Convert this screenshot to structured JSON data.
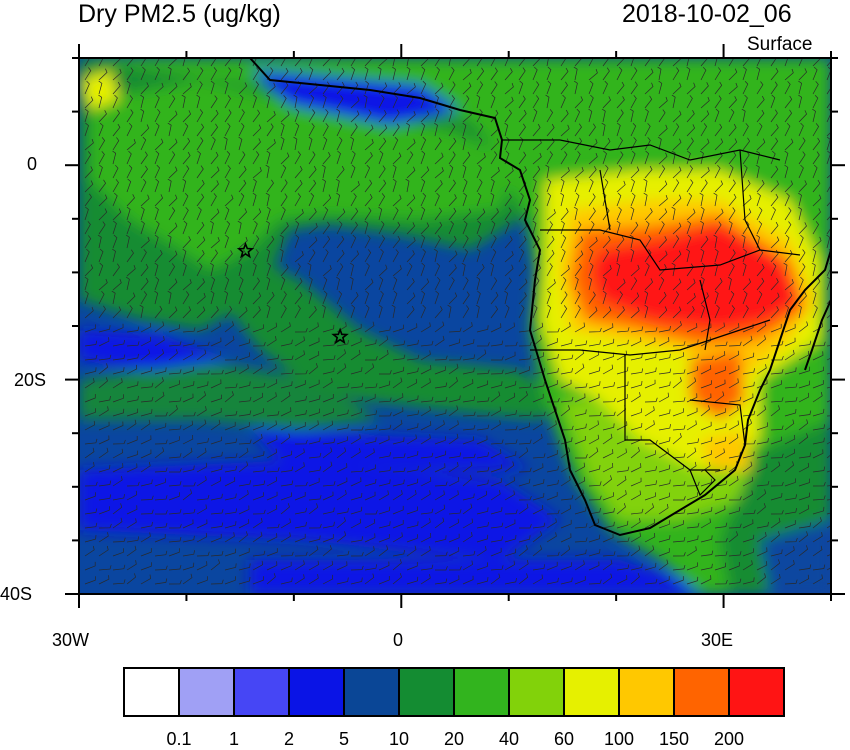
{
  "title": "Dry PM2.5 (ug/kg)",
  "datetime": "2018-10-02_06",
  "level": "Surface",
  "axes": {
    "x_ticks": [
      "30W",
      "0",
      "30E"
    ],
    "y_ticks": [
      "0",
      "20S",
      "40S"
    ]
  },
  "colorbar": {
    "labels": [
      "0.1",
      "1",
      "2",
      "5",
      "10",
      "20",
      "40",
      "60",
      "100",
      "150",
      "200"
    ],
    "colors": [
      "#ffffff",
      "#a0a0f5",
      "#4646f5",
      "#0a14e6",
      "#0a4696",
      "#148c32",
      "#32b41e",
      "#82d20a",
      "#e6f000",
      "#ffc800",
      "#ff6400",
      "#ff1414"
    ]
  },
  "markers": [
    {
      "name": "star",
      "lon": -14.5,
      "lat": -8
    },
    {
      "name": "star",
      "lon": -5.7,
      "lat": -16
    }
  ],
  "map": {
    "lon_range": [
      -30,
      40
    ],
    "lat_range": [
      -40,
      10
    ],
    "field": "Dry PM2.5 concentration with surface wind barbs"
  }
}
